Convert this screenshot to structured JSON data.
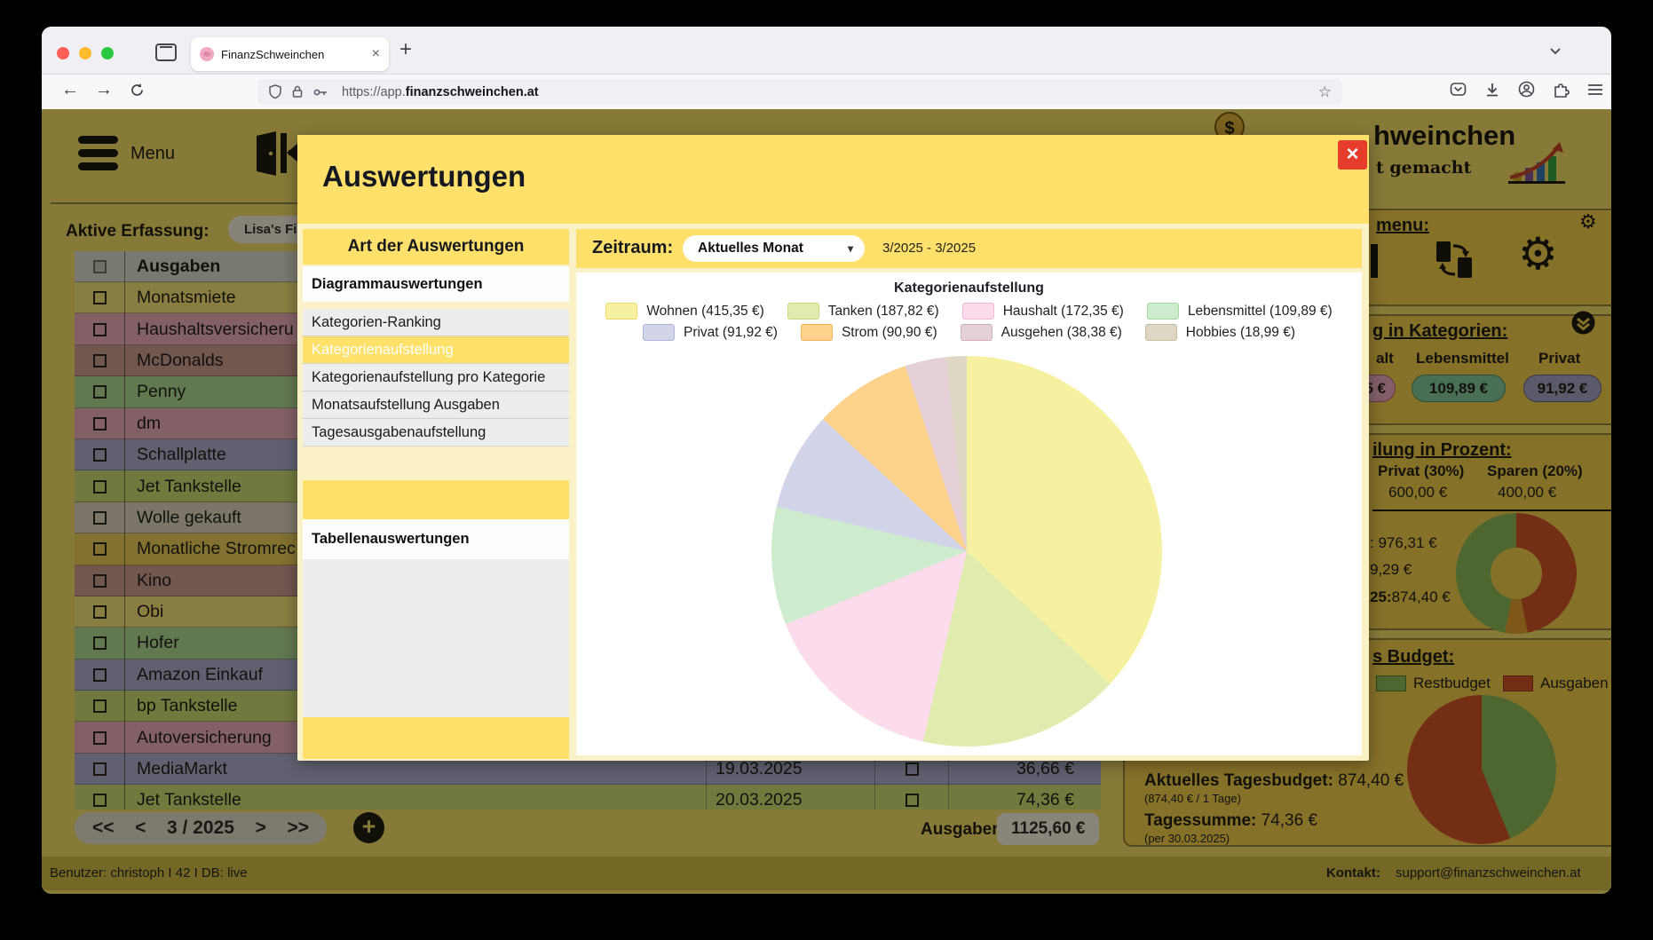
{
  "browser": {
    "tab_title": "FinanzSchweinchen",
    "url_prefix": "https://app.",
    "url_domain": "finanzschweinchen.at"
  },
  "page_header": {
    "menu_label": "Menu",
    "active_label": "Aktive Erfassung:",
    "active_value": "Lisa's Finanze",
    "logo_fragment": "hweinchen",
    "tagline_fragment": "t gemacht"
  },
  "expense_table": {
    "header": "Ausgaben",
    "rows": [
      {
        "name": "Monatsmiete",
        "color": "#f2e17c"
      },
      {
        "name": "Haushaltsversicheru",
        "color": "#e6a8c0"
      },
      {
        "name": "McDonalds",
        "color": "#c99597"
      },
      {
        "name": "Penny",
        "color": "#aad69a"
      },
      {
        "name": "dm",
        "color": "#e6a8c0"
      },
      {
        "name": "Schallplatte",
        "color": "#a6a8d6"
      },
      {
        "name": "Jet Tankstelle",
        "color": "#c9d878"
      },
      {
        "name": "Wolle gekauft",
        "color": "#d9d2c6"
      },
      {
        "name": "Monatliche Stromrec",
        "color": "#e8c95e"
      },
      {
        "name": "Kino",
        "color": "#c99597"
      },
      {
        "name": "Obi",
        "color": "#f2e17c"
      },
      {
        "name": "Hofer",
        "color": "#aad69a"
      },
      {
        "name": "Amazon Einkauf",
        "color": "#a6a8d6"
      },
      {
        "name": "bp Tankstelle",
        "color": "#c9d878"
      },
      {
        "name": "Autoversicherung",
        "color": "#e6a8c0"
      },
      {
        "name": "MediaMarkt",
        "color": "#a6a8d6",
        "date": "19.03.2025",
        "amount": "36,66 €"
      },
      {
        "name": "Jet Tankstelle",
        "color": "#c9d878",
        "date": "20.03.2025",
        "amount": "74,36 €"
      }
    ]
  },
  "pagination": {
    "first": "<<",
    "prev": "<",
    "label": "3 / 2025",
    "next": ">",
    "last": ">>",
    "add": "+"
  },
  "totals": {
    "label": "Ausgaben:",
    "value": "1125,60 €"
  },
  "footer": {
    "user_info": "Benutzer: christoph I 42 I DB: live",
    "contact_label": "Kontakt:",
    "contact_email": "support@finanzschweinchen.at"
  },
  "modal": {
    "title": "Auswertungen",
    "close": "×",
    "sidebar": {
      "header": "Art der Auswertungen",
      "section_diagram": "Diagrammauswertungen",
      "items": [
        {
          "label": "Kategorien-Ranking",
          "selected": false
        },
        {
          "label": "Kategorienaufstellung",
          "selected": true
        },
        {
          "label": "Kategorienaufstellung pro Kategorie",
          "selected": false
        },
        {
          "label": "Monatsaufstellung Ausgaben",
          "selected": false
        },
        {
          "label": "Tagesausgabenaufstellung",
          "selected": false
        }
      ],
      "section_table": "Tabellenauswertungen"
    },
    "period": {
      "label": "Zeitraum:",
      "selected": "Aktuelles Monat",
      "range": "3/2025 - 3/2025"
    }
  },
  "right_panels": {
    "quickmenu": {
      "heading_fragment": "menu:"
    },
    "kategorien": {
      "heading_fragment": "g in Kategorien:",
      "columns": [
        {
          "label_fragment": "alt",
          "value_fragment": "5 €",
          "fill": "#e8a9c6",
          "border": "#a85c82"
        },
        {
          "label_fragment": "Lebensmittel",
          "value_fragment": "109,89 €",
          "fill": "#7cc4a4",
          "border": "#3f8a68"
        },
        {
          "label_fragment": "Privat",
          "value_fragment": "91,92 €",
          "fill": "#9b9dcb",
          "border": "#5c5e8e"
        }
      ]
    },
    "prozent": {
      "heading_fragment": "ilung in Prozent:",
      "cols": [
        {
          "label": "Privat (30%)",
          "value": "600,00 €"
        },
        {
          "label": "Sparen (20%)",
          "value": "400,00 €"
        }
      ],
      "lines": [
        {
          "bold": "",
          "text": ": 976,31 €"
        },
        {
          "bold": "",
          "text": "9,29 €"
        },
        {
          "bold": "25:",
          "text": "874,40 €"
        }
      ]
    },
    "budget": {
      "heading_fragment": "s Budget:",
      "legend": [
        {
          "label": "Restbudget",
          "color": "#85b65e",
          "border": "#4f7a33"
        },
        {
          "label": "Ausgaben",
          "color": "#cf4a2b",
          "border": "#8f2d12"
        }
      ],
      "stats": [
        {
          "label": "Aktuelles Tagesbudget:",
          "value": "874,40 €",
          "sub": "(874,40 € / 1 Tage)"
        },
        {
          "label": "Tagessumme:",
          "value": "74,36 €",
          "sub": "(per 30.03.2025)"
        }
      ]
    }
  },
  "chart_data": [
    {
      "id": "main_pie",
      "type": "pie",
      "title": "Kategorienaufstellung",
      "labels": [
        "Wohnen",
        "Tanken",
        "Haushalt",
        "Lebensmittel",
        "Privat",
        "Strom",
        "Ausgehen",
        "Hobbies"
      ],
      "values": [
        415.35,
        187.82,
        172.35,
        109.89,
        91.92,
        90.9,
        38.38,
        18.99
      ],
      "display_values": [
        "415,35 €",
        "187,82 €",
        "172,35 €",
        "109,89 €",
        "91,92 €",
        "90,90 €",
        "38,38 €",
        "18,99 €"
      ],
      "colors": [
        "#f6f1a0",
        "#e0ebae",
        "#fcdcec",
        "#cdeccd",
        "#d2d5ea",
        "#fcd28d",
        "#e5d0d8",
        "#ded7c4"
      ],
      "border_colors": [
        "#e8dc6a",
        "#c7da84",
        "#f2b9d4",
        "#a4d8a4",
        "#aeb4d8",
        "#f2b254",
        "#cfafba",
        "#c6bca0"
      ],
      "legend_position": "top",
      "start_angle": "top",
      "direction": "clockwise"
    },
    {
      "id": "prozent_donut",
      "type": "donut",
      "values": [
        47,
        6,
        47
      ],
      "colors": [
        "#cf4a2b",
        "#df9a30",
        "#85b65e"
      ]
    },
    {
      "id": "budget_pie",
      "type": "pie",
      "labels": [
        "Restbudget",
        "Ausgaben"
      ],
      "values": [
        874.4,
        1125.6
      ],
      "colors": [
        "#85b65e",
        "#cf4a2b"
      ]
    }
  ]
}
